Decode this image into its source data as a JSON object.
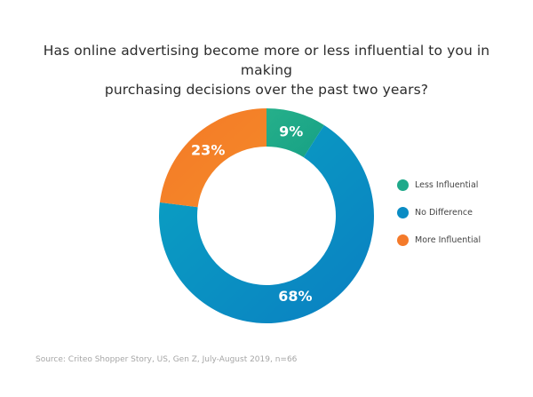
{
  "title_line1": "Has online advertising become more or less influential to you in making",
  "title_line2": "purchasing decisions over the past two years?",
  "source": "Source: Criteo Shopper Story, US, Gen Z, July-August 2019, n=66",
  "chart_data": {
    "type": "pie",
    "donut": true,
    "title": "Has online advertising become more or less influential to you in making purchasing decisions over the past two years?",
    "categories": [
      "Less Influential",
      "No Difference",
      "More Influential"
    ],
    "values": [
      9,
      68,
      23
    ],
    "value_labels": [
      "9%",
      "68%",
      "23%"
    ],
    "colors": [
      "#1fa98a",
      "#0a8cc4",
      "#f47a2a"
    ],
    "legend_position": "right"
  }
}
